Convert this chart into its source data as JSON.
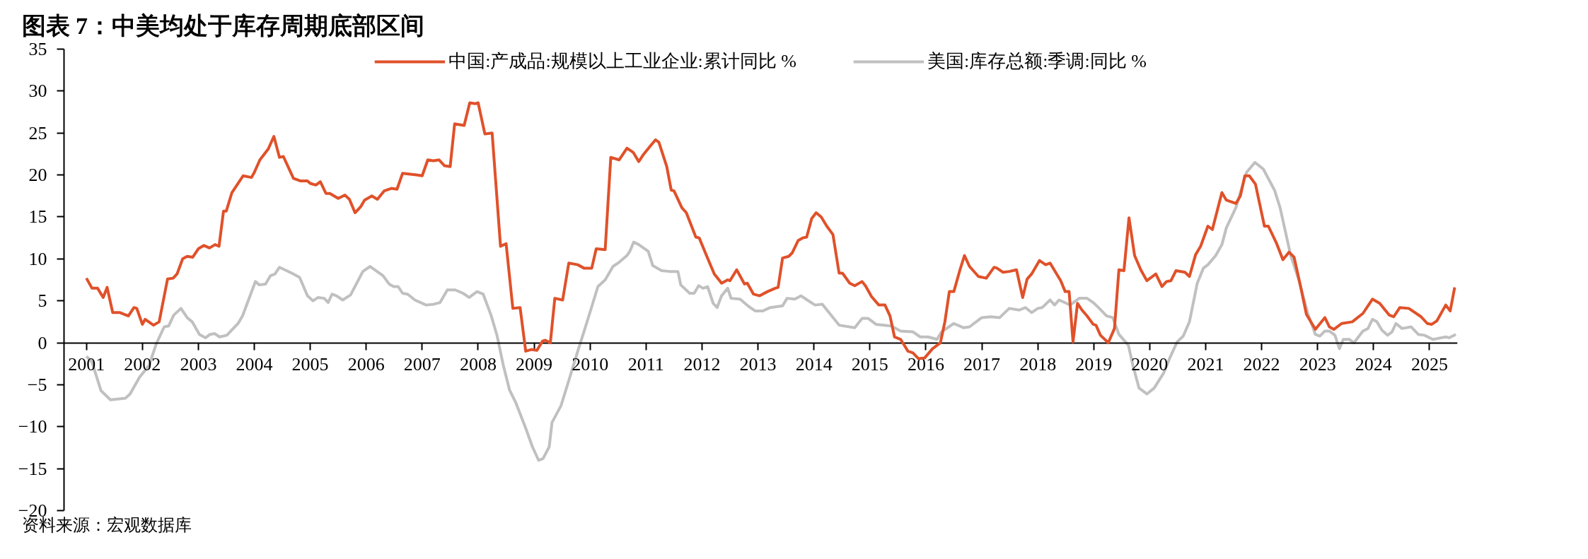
{
  "chart_data": {
    "type": "line",
    "title": "图表 7：中美均处于库存周期底部区间",
    "annotations": [
      "资料来源：宏观数据库"
    ],
    "xlim": [
      2000.6,
      2025.5
    ],
    "xticks": [
      2001,
      2002,
      2003,
      2004,
      2005,
      2006,
      2007,
      2008,
      2009,
      2010,
      2011,
      2012,
      2013,
      2014,
      2015,
      2016,
      2017,
      2018,
      2019,
      2020,
      2021,
      2022,
      2023,
      2024,
      2025
    ],
    "ylim": [
      -20,
      35
    ],
    "yticks": [
      -20,
      -15,
      -10,
      -5,
      0,
      5,
      10,
      15,
      20,
      25,
      30,
      35
    ],
    "grid": false,
    "legend": "top",
    "marker": "none",
    "line_style": "solid",
    "series": [
      {
        "name": "中国:产成品:规模以上工业企业:累计同比 %",
        "color": "#e0512a",
        "x": [
          2001.0,
          2001.1,
          2001.2,
          2001.3,
          2001.37,
          2001.47,
          2001.6,
          2001.75,
          2001.85,
          2001.9,
          2002.0,
          2002.05,
          2002.2,
          2002.3,
          2002.45,
          2002.55,
          2002.62,
          2002.72,
          2002.8,
          2002.9,
          2003.0,
          2003.1,
          2003.2,
          2003.3,
          2003.37,
          2003.45,
          2003.5,
          2003.6,
          2003.8,
          2003.95,
          2004.0,
          2004.1,
          2004.25,
          2004.35,
          2004.45,
          2004.52,
          2004.7,
          2004.82,
          2004.95,
          2005.0,
          2005.1,
          2005.18,
          2005.28,
          2005.35,
          2005.5,
          2005.62,
          2005.7,
          2005.8,
          2005.9,
          2005.97,
          2006.1,
          2006.2,
          2006.32,
          2006.45,
          2006.55,
          2006.65,
          2006.9,
          2007.0,
          2007.1,
          2007.2,
          2007.3,
          2007.4,
          2007.5,
          2007.58,
          2007.75,
          2007.85,
          2007.95,
          2008.0,
          2008.12,
          2008.25,
          2008.4,
          2008.5,
          2008.62,
          2008.75,
          2008.85,
          2008.95,
          2009.05,
          2009.15,
          2009.2,
          2009.29,
          2009.37,
          2009.51,
          2009.62,
          2009.78,
          2009.89,
          2010.03,
          2010.11,
          2010.27,
          2010.37,
          2010.52,
          2010.66,
          2010.77,
          2010.87,
          2010.96,
          2011.07,
          2011.17,
          2011.23,
          2011.37,
          2011.45,
          2011.5,
          2011.64,
          2011.72,
          2011.89,
          2011.95,
          2012.08,
          2012.22,
          2012.35,
          2012.46,
          2012.5,
          2012.62,
          2012.76,
          2012.81,
          2012.92,
          2013.03,
          2013.17,
          2013.31,
          2013.36,
          2013.44,
          2013.55,
          2013.61,
          2013.72,
          2013.8,
          2013.87,
          2013.96,
          2014.04,
          2014.13,
          2014.23,
          2014.34,
          2014.45,
          2014.51,
          2014.64,
          2014.73,
          2014.86,
          2014.92,
          2015.03,
          2015.16,
          2015.27,
          2015.36,
          2015.44,
          2015.55,
          2015.68,
          2015.77,
          2015.87,
          2015.98,
          2016.12,
          2016.26,
          2016.34,
          2016.42,
          2016.5,
          2016.61,
          2016.69,
          2016.78,
          2016.94,
          2017.08,
          2017.22,
          2017.27,
          2017.38,
          2017.49,
          2017.62,
          2017.73,
          2017.81,
          2017.89,
          2018.03,
          2018.14,
          2018.22,
          2018.41,
          2018.49,
          2018.56,
          2018.63,
          2018.71,
          2018.79,
          2018.88,
          2018.99,
          2019.04,
          2019.12,
          2019.26,
          2019.37,
          2019.45,
          2019.54,
          2019.63,
          2019.73,
          2019.84,
          2019.95,
          2020.11,
          2020.22,
          2020.3,
          2020.38,
          2020.47,
          2020.63,
          2020.71,
          2020.82,
          2020.91,
          2021.04,
          2021.12,
          2021.29,
          2021.37,
          2021.54,
          2021.62,
          2021.7,
          2021.78,
          2021.89,
          2022.05,
          2022.12,
          2022.27,
          2022.38,
          2022.49,
          2022.58,
          2022.69,
          2022.8,
          2022.96,
          2023.13,
          2023.21,
          2023.29,
          2023.43,
          2023.62,
          2023.81,
          2023.98,
          2024.11,
          2024.28,
          2024.36,
          2024.47,
          2024.63,
          2024.85,
          2024.96,
          2025.04,
          2025.13,
          2025.29,
          2025.37,
          2025.45
        ],
        "values": [
          7.7,
          6.5,
          6.5,
          5.4,
          6.6,
          3.6,
          3.6,
          3.2,
          4.2,
          4.1,
          2.2,
          2.8,
          2.1,
          2.5,
          7.6,
          7.7,
          8.2,
          10.0,
          10.3,
          10.2,
          11.2,
          11.6,
          11.3,
          11.7,
          11.5,
          15.7,
          15.7,
          17.9,
          19.9,
          19.7,
          20.3,
          21.8,
          23.1,
          24.6,
          22.1,
          22.2,
          19.6,
          19.3,
          19.3,
          19.0,
          18.8,
          19.2,
          17.8,
          17.8,
          17.2,
          17.6,
          17.1,
          15.5,
          16.2,
          17.0,
          17.5,
          17.1,
          18.1,
          18.4,
          18.3,
          20.2,
          20.0,
          19.9,
          21.8,
          21.7,
          21.8,
          21.1,
          21.0,
          26.1,
          25.9,
          28.6,
          28.5,
          28.6,
          24.9,
          25.0,
          11.5,
          11.8,
          4.1,
          4.2,
          -1.0,
          -0.8,
          -0.9,
          0.2,
          0.3,
          0.0,
          5.3,
          5.1,
          9.5,
          9.3,
          8.9,
          8.9,
          11.2,
          11.1,
          22.1,
          21.8,
          23.2,
          22.7,
          21.6,
          22.5,
          23.4,
          24.2,
          23.9,
          21.0,
          18.2,
          18.1,
          16.1,
          15.5,
          12.6,
          12.5,
          10.4,
          8.2,
          7.1,
          7.5,
          7.4,
          8.7,
          7.0,
          7.1,
          5.8,
          5.6,
          6.1,
          6.5,
          6.6,
          10.1,
          10.3,
          10.7,
          12.2,
          12.5,
          12.6,
          14.8,
          15.5,
          15.0,
          13.9,
          12.9,
          8.3,
          8.3,
          7.1,
          6.8,
          7.3,
          6.8,
          5.5,
          4.5,
          4.5,
          3.2,
          0.7,
          0.4,
          -1.0,
          -1.2,
          -1.9,
          -1.8,
          -0.7,
          0.0,
          2.5,
          6.1,
          6.1,
          8.7,
          10.4,
          9.1,
          7.9,
          7.7,
          9.0,
          8.9,
          8.4,
          8.5,
          8.7,
          5.4,
          7.6,
          8.2,
          9.8,
          9.3,
          9.5,
          7.4,
          6.1,
          6.1,
          0.1,
          4.7,
          3.9,
          3.2,
          2.2,
          2.1,
          0.9,
          0.0,
          1.7,
          8.7,
          8.6,
          14.9,
          10.4,
          8.7,
          7.4,
          8.2,
          6.7,
          7.3,
          7.4,
          8.6,
          8.4,
          7.9,
          10.5,
          11.5,
          13.9,
          13.5,
          17.9,
          17.0,
          16.6,
          17.5,
          19.9,
          19.9,
          18.9,
          13.9,
          13.9,
          11.8,
          9.9,
          10.8,
          10.2,
          6.9,
          3.4,
          1.6,
          3.0,
          1.9,
          1.6,
          2.3,
          2.5,
          3.5,
          5.2,
          4.7,
          3.3,
          3.1,
          4.2,
          4.1,
          3.1,
          2.3,
          2.2,
          2.6,
          4.5,
          3.8,
          6.6
        ]
      },
      {
        "name": "美国:库存总额:季调:同比 %",
        "color": "#c0c0c0",
        "x": [
          2001.0,
          2001.1,
          2001.26,
          2001.43,
          2001.7,
          2001.78,
          2001.95,
          2002.12,
          2002.25,
          2002.39,
          2002.47,
          2002.56,
          2002.69,
          2002.8,
          2002.89,
          2003.02,
          2003.13,
          2003.21,
          2003.29,
          2003.38,
          2003.51,
          2003.71,
          2003.79,
          2004.02,
          2004.09,
          2004.2,
          2004.29,
          2004.37,
          2004.45,
          2004.67,
          2004.81,
          2004.95,
          2005.05,
          2005.14,
          2005.25,
          2005.32,
          2005.39,
          2005.47,
          2005.58,
          2005.72,
          2005.94,
          2006.07,
          2006.3,
          2006.41,
          2006.49,
          2006.57,
          2006.65,
          2006.74,
          2006.87,
          2007.07,
          2007.21,
          2007.32,
          2007.45,
          2007.59,
          2007.73,
          2007.84,
          2007.98,
          2008.09,
          2008.23,
          2008.34,
          2008.45,
          2008.56,
          2008.67,
          2008.84,
          2008.97,
          2009.08,
          2009.16,
          2009.27,
          2009.32,
          2009.48,
          2009.62,
          2009.78,
          2009.89,
          2010.03,
          2010.14,
          2010.27,
          2010.41,
          2010.52,
          2010.66,
          2010.71,
          2010.78,
          2010.87,
          2011.04,
          2011.12,
          2011.28,
          2011.42,
          2011.57,
          2011.62,
          2011.78,
          2011.86,
          2011.94,
          2012.02,
          2012.1,
          2012.2,
          2012.27,
          2012.35,
          2012.46,
          2012.52,
          2012.68,
          2012.84,
          2012.95,
          2013.09,
          2013.22,
          2013.44,
          2013.52,
          2013.66,
          2013.77,
          2013.88,
          2014.02,
          2014.15,
          2014.45,
          2014.73,
          2014.86,
          2014.97,
          2015.11,
          2015.38,
          2015.55,
          2015.77,
          2015.9,
          2016.04,
          2016.2,
          2016.28,
          2016.5,
          2016.67,
          2016.78,
          2017.0,
          2017.16,
          2017.32,
          2017.49,
          2017.67,
          2017.78,
          2017.89,
          2018.0,
          2018.08,
          2018.22,
          2018.3,
          2018.38,
          2018.58,
          2018.74,
          2018.88,
          2018.99,
          2019.1,
          2019.23,
          2019.34,
          2019.45,
          2019.62,
          2019.7,
          2019.81,
          2019.95,
          2020.08,
          2020.25,
          2020.36,
          2020.49,
          2020.6,
          2020.71,
          2020.85,
          2020.96,
          2021.04,
          2021.18,
          2021.29,
          2021.37,
          2021.54,
          2021.73,
          2021.88,
          2022.03,
          2022.23,
          2022.33,
          2022.52,
          2022.66,
          2022.82,
          2022.96,
          2023.04,
          2023.13,
          2023.21,
          2023.31,
          2023.39,
          2023.46,
          2023.57,
          2023.65,
          2023.81,
          2023.9,
          2023.98,
          2024.06,
          2024.15,
          2024.25,
          2024.33,
          2024.4,
          2024.51,
          2024.67,
          2024.8,
          2024.91,
          2025.06,
          2025.29,
          2025.35,
          2025.47
        ],
        "values": [
          -1.6,
          -2.3,
          -5.7,
          -6.8,
          -6.6,
          -6.1,
          -4.1,
          -2.7,
          -0.1,
          1.9,
          2.0,
          3.3,
          4.1,
          3.0,
          2.5,
          1.0,
          0.6,
          1.0,
          1.1,
          0.7,
          0.9,
          2.3,
          3.2,
          7.3,
          6.9,
          7.0,
          8.0,
          8.2,
          9.0,
          8.3,
          7.8,
          5.6,
          5.0,
          5.4,
          5.3,
          4.8,
          5.8,
          5.6,
          5.1,
          5.7,
          8.5,
          9.1,
          8.0,
          7.0,
          6.7,
          6.7,
          5.9,
          5.8,
          5.1,
          4.5,
          4.6,
          4.8,
          6.3,
          6.3,
          5.9,
          5.4,
          6.1,
          5.8,
          3.3,
          0.8,
          -2.7,
          -5.6,
          -7.1,
          -10.0,
          -12.4,
          -14.0,
          -13.8,
          -12.4,
          -9.5,
          -7.5,
          -4.5,
          -1.0,
          1.3,
          4.3,
          6.7,
          7.5,
          9.1,
          9.6,
          10.4,
          10.9,
          12.0,
          11.7,
          10.9,
          9.2,
          8.6,
          8.5,
          8.5,
          6.9,
          5.9,
          5.9,
          6.8,
          6.5,
          6.7,
          4.7,
          4.2,
          5.6,
          6.5,
          5.3,
          5.2,
          4.3,
          3.8,
          3.8,
          4.2,
          4.4,
          5.3,
          5.2,
          5.6,
          5.1,
          4.5,
          4.6,
          2.1,
          1.8,
          2.9,
          2.9,
          2.2,
          2.0,
          1.4,
          1.3,
          0.7,
          0.7,
          0.4,
          1.3,
          2.3,
          1.8,
          1.9,
          3.0,
          3.1,
          3.0,
          4.1,
          3.9,
          4.2,
          3.6,
          4.1,
          4.2,
          5.1,
          4.5,
          5.1,
          4.5,
          5.3,
          5.3,
          4.8,
          4.1,
          3.2,
          3.0,
          1.0,
          -0.3,
          -2.7,
          -5.4,
          -6.1,
          -5.4,
          -3.6,
          -1.8,
          0.1,
          0.8,
          2.5,
          7.1,
          8.9,
          9.3,
          10.4,
          11.7,
          13.7,
          16.1,
          20.3,
          21.5,
          20.7,
          18.2,
          16.1,
          10.4,
          7.6,
          3.6,
          1.0,
          0.8,
          1.4,
          1.4,
          0.9,
          -0.7,
          0.4,
          0.4,
          0.0,
          1.4,
          1.7,
          2.8,
          2.5,
          1.5,
          0.9,
          1.3,
          2.3,
          1.7,
          1.9,
          1.0,
          0.9,
          0.4,
          0.7,
          0.6,
          1.0
        ]
      }
    ]
  }
}
